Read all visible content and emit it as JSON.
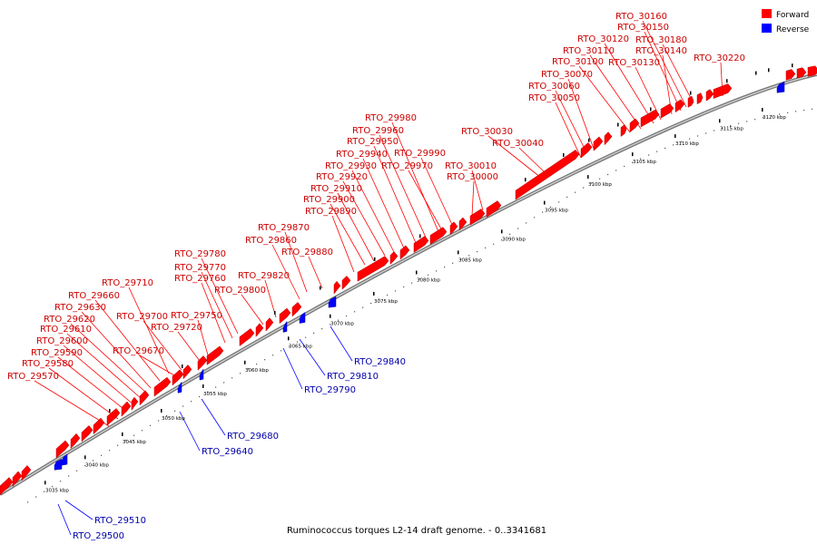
{
  "caption": "Ruminococcus torques L2-14 draft genome. - 0..3341681",
  "legend": [
    {
      "label": "Forward",
      "color": "#ff0000"
    },
    {
      "label": "Reverse",
      "color": "#0000ff"
    }
  ],
  "colors": {
    "forward": "#ff0000",
    "reverse": "#0000ff",
    "forward_label": "#cc0000",
    "reverse_label": "#0000aa",
    "backbone": "#909090"
  },
  "scale_labels": [
    "3035 kbp",
    "3040 kbp",
    "3045 kbp",
    "3050 kbp",
    "3055 kbp",
    "3060 kbp",
    "3065 kbp",
    "3070 kbp",
    "3075 kbp",
    "3080 kbp",
    "3085 kbp",
    "3090 kbp",
    "3095 kbp",
    "3100 kbp",
    "3105 kbp",
    "3110 kbp",
    "3115 kbp",
    "3120 kbp"
  ],
  "forward_labels": [
    "RTO_29570",
    "RTO_29580",
    "RTO_29590",
    "RTO_29600",
    "RTO_29610",
    "RTO_29620",
    "RTO_29630",
    "RTO_29660",
    "RTO_29710",
    "RTO_29670",
    "RTO_29700",
    "RTO_29720",
    "RTO_29750",
    "RTO_29760",
    "RTO_29770",
    "RTO_29780",
    "RTO_29800",
    "RTO_29820",
    "RTO_29860",
    "RTO_29870",
    "RTO_29880",
    "RTO_29890",
    "RTO_29900",
    "RTO_29910",
    "RTO_29920",
    "RTO_29930",
    "RTO_29940",
    "RTO_29950",
    "RTO_29960",
    "RTO_29980",
    "RTO_29970",
    "RTO_29990",
    "RTO_30000",
    "RTO_30010",
    "RTO_30030",
    "RTO_30040",
    "RTO_30050",
    "RTO_30060",
    "RTO_30070",
    "RTO_30100",
    "RTO_30110",
    "RTO_30120",
    "RTO_30130",
    "RTO_30140",
    "RTO_30150",
    "RTO_30160",
    "RTO_30180",
    "RTO_30220"
  ],
  "reverse_labels": [
    "RTO_29500",
    "RTO_29510",
    "RTO_29640",
    "RTO_29680",
    "RTO_29790",
    "RTO_29810",
    "RTO_29840"
  ]
}
